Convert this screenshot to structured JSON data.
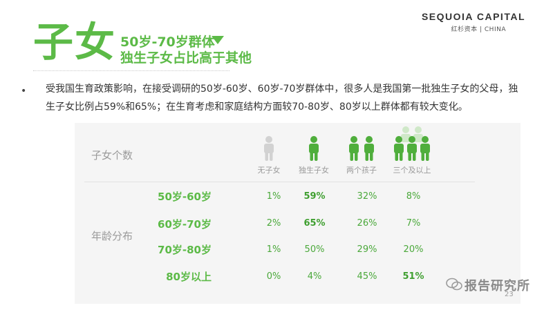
{
  "header": {
    "title": "子女",
    "subtitle_line1": "50岁-70岁群体",
    "subtitle_line2": "独生子女占比高于其他"
  },
  "brand": {
    "name": "SEQUOIA CAPITAL",
    "sub": "红杉资本 | CHINA"
  },
  "bullet": {
    "text": "受我国生育政策影响，在接受调研的50岁-60岁、60岁-70岁群体中，很多人是我国第一批独生子女的父母，独生子女比例占59%和65%；在生育考虑和家庭结构方面较70-80岁、80岁以上群体都有较大变化。"
  },
  "table": {
    "count_label": "子女个数",
    "age_label": "年龄分布",
    "columns": [
      "无子女",
      "独生子女",
      "两个孩子",
      "三个及以上"
    ],
    "column_icons": [
      "person-gray-icon",
      "person-single-icon",
      "person-two-icon",
      "person-three-icon"
    ],
    "rows": [
      {
        "label": "50岁-60岁",
        "values": [
          "1%",
          "59%",
          "32%",
          "8%"
        ],
        "bold": [
          false,
          true,
          false,
          false
        ]
      },
      {
        "label": "60岁-70岁",
        "values": [
          "2%",
          "65%",
          "26%",
          "7%"
        ],
        "bold": [
          false,
          true,
          false,
          false
        ]
      },
      {
        "label": "70岁-80岁",
        "values": [
          "1%",
          "50%",
          "29%",
          "20%"
        ],
        "bold": [
          false,
          false,
          false,
          false
        ]
      },
      {
        "label": "80岁以上",
        "values": [
          "0%",
          "4%",
          "45%",
          "51%"
        ],
        "bold": [
          false,
          false,
          false,
          true
        ]
      }
    ]
  },
  "colors": {
    "accent": "#5cba47",
    "muted": "#9a9a9a",
    "panel": "#f5f5f5"
  },
  "watermark": "报告研究所",
  "page_number": "23"
}
